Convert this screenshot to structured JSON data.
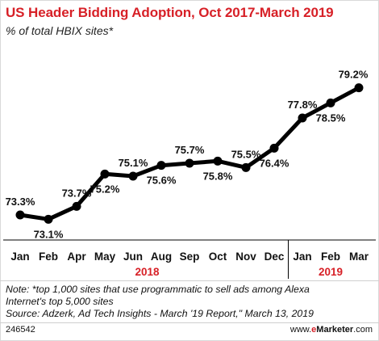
{
  "header": {
    "title": "US Header Bidding Adoption, Oct 2017-March 2019",
    "subtitle": "% of total HBIX sites*"
  },
  "chart_data": {
    "type": "line",
    "title": "US Header Bidding Adoption, Oct 2017-March 2019",
    "subtitle": "% of total HBIX sites*",
    "x": [
      "Jan",
      "Feb",
      "Apr",
      "May",
      "Jun",
      "Aug",
      "Sep",
      "Oct",
      "Nov",
      "Dec",
      "Jan",
      "Feb",
      "Mar"
    ],
    "groups": [
      {
        "label": "2018",
        "from": 0,
        "to": 9
      },
      {
        "label": "2019",
        "from": 10,
        "to": 12
      }
    ],
    "series": [
      {
        "values": [
          73.3,
          73.1,
          73.7,
          75.2,
          75.1,
          75.6,
          75.7,
          75.8,
          75.5,
          76.4,
          77.8,
          78.5,
          79.2
        ]
      }
    ],
    "data_labels": [
      "73.3%",
      "73.1%",
      "73.7%",
      "75.2%",
      "75.1%",
      "75.6%",
      "75.7%",
      "75.8%",
      "75.5%",
      "76.4%",
      "77.8%",
      "78.5%",
      "79.2%"
    ],
    "label_position": [
      "above",
      "below",
      "above",
      "below",
      "above",
      "below",
      "above",
      "below",
      "above",
      "below",
      "above",
      "below",
      "above"
    ],
    "ylim": [
      72.4,
      79.9
    ],
    "grid": false,
    "colors": {
      "line": "#000000",
      "year_label": "#d72027"
    }
  },
  "footer": {
    "note_line1": "Note: *top 1,000 sites that use programmatic to sell ads among Alexa",
    "note_line2": "Internet's top 5,000 sites",
    "source": "Source: Adzerk, Ad Tech Insights - March '19 Report,\" March 13, 2019",
    "id": "246542",
    "brand_www": "www.",
    "brand_e": "e",
    "brand_name": "Marketer",
    "brand_com": ".com"
  }
}
